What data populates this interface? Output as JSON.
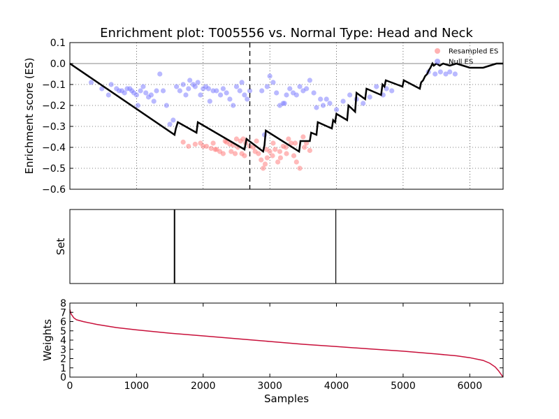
{
  "title": "Enrichment plot: T005556 vs. Normal Type: Head and Neck",
  "colors": {
    "resampled": "#ff7f7f",
    "null": "#7f7fff",
    "es_line": "#000000",
    "weights_line": "#c8103a"
  },
  "chart_data": [
    {
      "type": "line",
      "title": "Enrichment plot: T005556 vs. Normal Type: Head and Neck",
      "xlabel": "",
      "ylabel": "Enrichment score (ES)",
      "xlim": [
        0,
        6500
      ],
      "ylim": [
        -0.6,
        0.1
      ],
      "yticks": [
        0.1,
        0.0,
        -0.1,
        -0.2,
        -0.3,
        -0.4,
        -0.5,
        -0.6
      ],
      "ytick_labels": [
        "0.1",
        "0.0",
        "−0.1",
        "−0.2",
        "−0.3",
        "−0.4",
        "−0.5",
        "−0.6"
      ],
      "xgrid": [
        1000,
        2000,
        3000,
        4000,
        5000,
        6000
      ],
      "grid": true,
      "legend": {
        "placement": "top-right",
        "entries": [
          "Resampled ES",
          "Null ES"
        ]
      },
      "vline_x": 2700,
      "series": [
        {
          "name": "Resampled ES",
          "kind": "scatter",
          "points": [
            [
              1700,
              -0.375
            ],
            [
              1780,
              -0.395
            ],
            [
              1960,
              -0.38
            ],
            [
              2050,
              -0.395
            ],
            [
              2120,
              -0.405
            ],
            [
              2180,
              -0.41
            ],
            [
              2250,
              -0.42
            ],
            [
              2300,
              -0.43
            ],
            [
              2350,
              -0.375
            ],
            [
              2400,
              -0.385
            ],
            [
              2450,
              -0.39
            ],
            [
              2500,
              -0.36
            ],
            [
              2520,
              -0.4
            ],
            [
              2560,
              -0.37
            ],
            [
              2600,
              -0.36
            ],
            [
              2640,
              -0.38
            ],
            [
              2700,
              -0.395
            ],
            [
              2750,
              -0.4
            ],
            [
              2800,
              -0.37
            ],
            [
              2830,
              -0.43
            ],
            [
              2870,
              -0.46
            ],
            [
              2900,
              -0.5
            ],
            [
              2930,
              -0.48
            ],
            [
              2960,
              -0.45
            ],
            [
              3000,
              -0.42
            ],
            [
              3040,
              -0.44
            ],
            [
              3080,
              -0.41
            ],
            [
              3120,
              -0.47
            ],
            [
              3160,
              -0.45
            ],
            [
              3200,
              -0.395
            ],
            [
              3240,
              -0.4
            ],
            [
              3280,
              -0.36
            ],
            [
              3320,
              -0.38
            ],
            [
              3360,
              -0.44
            ],
            [
              3400,
              -0.47
            ],
            [
              3450,
              -0.5
            ],
            [
              3500,
              -0.35
            ],
            [
              3520,
              -0.4
            ],
            [
              3550,
              -0.38
            ],
            [
              3600,
              -0.415
            ],
            [
              2200,
              -0.41
            ],
            [
              2330,
              -0.37
            ],
            [
              2480,
              -0.43
            ],
            [
              2620,
              -0.44
            ],
            [
              2780,
              -0.42
            ],
            [
              2950,
              -0.41
            ],
            [
              3050,
              -0.38
            ],
            [
              3150,
              -0.42
            ],
            [
              3250,
              -0.43
            ],
            [
              3380,
              -0.38
            ],
            [
              2150,
              -0.38
            ],
            [
              2420,
              -0.42
            ],
            [
              1880,
              -0.385
            ],
            [
              2000,
              -0.395
            ],
            [
              2580,
              -0.43
            ]
          ]
        },
        {
          "name": "Null ES",
          "kind": "scatter",
          "points": [
            [
              320,
              -0.09
            ],
            [
              480,
              -0.12
            ],
            [
              580,
              -0.15
            ],
            [
              620,
              -0.1
            ],
            [
              700,
              -0.12
            ],
            [
              740,
              -0.13
            ],
            [
              780,
              -0.13
            ],
            [
              820,
              -0.14
            ],
            [
              860,
              -0.12
            ],
            [
              900,
              -0.12
            ],
            [
              930,
              -0.13
            ],
            [
              960,
              -0.14
            ],
            [
              1000,
              -0.15
            ],
            [
              1020,
              -0.2
            ],
            [
              1060,
              -0.13
            ],
            [
              1100,
              -0.11
            ],
            [
              1140,
              -0.14
            ],
            [
              1180,
              -0.16
            ],
            [
              1220,
              -0.15
            ],
            [
              1260,
              -0.18
            ],
            [
              1300,
              -0.13
            ],
            [
              1350,
              -0.05
            ],
            [
              1400,
              -0.13
            ],
            [
              1450,
              -0.2
            ],
            [
              1500,
              -0.29
            ],
            [
              1550,
              -0.27
            ],
            [
              1600,
              -0.11
            ],
            [
              1650,
              -0.13
            ],
            [
              1700,
              -0.1
            ],
            [
              1740,
              -0.15
            ],
            [
              1780,
              -0.12
            ],
            [
              1800,
              -0.08
            ],
            [
              1850,
              -0.1
            ],
            [
              1880,
              -0.11
            ],
            [
              1920,
              -0.09
            ],
            [
              1960,
              -0.15
            ],
            [
              2000,
              -0.12
            ],
            [
              2040,
              -0.11
            ],
            [
              2080,
              -0.12
            ],
            [
              2100,
              -0.18
            ],
            [
              2150,
              -0.13
            ],
            [
              2200,
              -0.13
            ],
            [
              2260,
              -0.15
            ],
            [
              2300,
              -0.12
            ],
            [
              2350,
              -0.14
            ],
            [
              2400,
              -0.17
            ],
            [
              2450,
              -0.2
            ],
            [
              2500,
              -0.11
            ],
            [
              2550,
              -0.13
            ],
            [
              2580,
              -0.09
            ],
            [
              2620,
              -0.15
            ],
            [
              2660,
              -0.17
            ],
            [
              2700,
              -0.13
            ],
            [
              2920,
              -0.34
            ],
            [
              2960,
              -0.11
            ],
            [
              3000,
              -0.06
            ],
            [
              3050,
              -0.09
            ],
            [
              3100,
              -0.14
            ],
            [
              3150,
              -0.2
            ],
            [
              3200,
              -0.19
            ],
            [
              3250,
              -0.15
            ],
            [
              3300,
              -0.12
            ],
            [
              3350,
              -0.14
            ],
            [
              3400,
              -0.15
            ],
            [
              3450,
              -0.11
            ],
            [
              3500,
              -0.13
            ],
            [
              3550,
              -0.12
            ],
            [
              3600,
              -0.08
            ],
            [
              3660,
              -0.14
            ],
            [
              3700,
              -0.21
            ],
            [
              3760,
              -0.17
            ],
            [
              3800,
              -0.2
            ],
            [
              3850,
              -0.17
            ],
            [
              3900,
              -0.19
            ],
            [
              4000,
              -0.22
            ],
            [
              4100,
              -0.18
            ],
            [
              4200,
              -0.15
            ],
            [
              4300,
              -0.17
            ],
            [
              4400,
              -0.19
            ],
            [
              4500,
              -0.16
            ],
            [
              4600,
              -0.11
            ],
            [
              4700,
              -0.15
            ],
            [
              4750,
              -0.12
            ],
            [
              5380,
              -0.04
            ],
            [
              5480,
              -0.05
            ],
            [
              5560,
              -0.04
            ],
            [
              5640,
              -0.05
            ],
            [
              5700,
              -0.04
            ],
            [
              5780,
              -0.05
            ],
            [
              4830,
              -0.13
            ],
            [
              3220,
              -0.19
            ],
            [
              2880,
              -0.13
            ]
          ]
        },
        {
          "name": "",
          "kind": "line",
          "points": [
            [
              0,
              0
            ],
            [
              1570,
              -0.34
            ],
            [
              1590,
              -0.31
            ],
            [
              1620,
              -0.28
            ],
            [
              1900,
              -0.33
            ],
            [
              1920,
              -0.28
            ],
            [
              2620,
              -0.41
            ],
            [
              2650,
              -0.36
            ],
            [
              2900,
              -0.42
            ],
            [
              2920,
              -0.39
            ],
            [
              2940,
              -0.32
            ],
            [
              3440,
              -0.42
            ],
            [
              3460,
              -0.37
            ],
            [
              3600,
              -0.37
            ],
            [
              3620,
              -0.33
            ],
            [
              3700,
              -0.34
            ],
            [
              3720,
              -0.28
            ],
            [
              3930,
              -0.31
            ],
            [
              3950,
              -0.27
            ],
            [
              3980,
              -0.28
            ],
            [
              4000,
              -0.24
            ],
            [
              4160,
              -0.27
            ],
            [
              4180,
              -0.2
            ],
            [
              4280,
              -0.23
            ],
            [
              4300,
              -0.14
            ],
            [
              4430,
              -0.17
            ],
            [
              4450,
              -0.12
            ],
            [
              4670,
              -0.15
            ],
            [
              4690,
              -0.1
            ],
            [
              4720,
              -0.11
            ],
            [
              4740,
              -0.08
            ],
            [
              4990,
              -0.11
            ],
            [
              5010,
              -0.08
            ],
            [
              5250,
              -0.12
            ],
            [
              5270,
              -0.09
            ],
            [
              5300,
              -0.08
            ],
            [
              5330,
              -0.06
            ],
            [
              5360,
              -0.05
            ],
            [
              5390,
              -0.03
            ],
            [
              5410,
              -0.02
            ],
            [
              5440,
              0.0
            ],
            [
              5460,
              -0.01
            ],
            [
              5500,
              0.0
            ],
            [
              5550,
              -0.01
            ],
            [
              5600,
              0.0
            ],
            [
              5700,
              -0.01
            ],
            [
              5800,
              0.0
            ],
            [
              5900,
              -0.01
            ],
            [
              6000,
              -0.02
            ],
            [
              6100,
              -0.02
            ],
            [
              6200,
              -0.02
            ],
            [
              6300,
              -0.01
            ],
            [
              6400,
              0.0
            ],
            [
              6500,
              0.0
            ]
          ]
        }
      ]
    },
    {
      "type": "line",
      "title": "",
      "xlabel": "",
      "ylabel": "Set",
      "xlim": [
        0,
        6500
      ],
      "hits": [
        1570,
        3990
      ]
    },
    {
      "type": "line",
      "title": "",
      "xlabel": "Samples",
      "ylabel": "Weights",
      "xlim": [
        0,
        6500
      ],
      "ylim": [
        0,
        8
      ],
      "yticks": [
        0,
        1,
        2,
        3,
        4,
        5,
        6,
        7,
        8
      ],
      "ytick_labels": [
        "0",
        "1",
        "2",
        "3",
        "4",
        "5",
        "6",
        "7",
        "8"
      ],
      "xticks": [
        0,
        1000,
        2000,
        3000,
        4000,
        5000,
        6000
      ],
      "xtick_labels": [
        "0",
        "1000",
        "2000",
        "3000",
        "4000",
        "5000",
        "6000"
      ],
      "series": [
        {
          "name": "",
          "x": [
            0,
            20,
            60,
            100,
            200,
            400,
            700,
            1000,
            1500,
            2000,
            2500,
            3000,
            3500,
            4000,
            4500,
            5000,
            5500,
            5800,
            6000,
            6200,
            6300,
            6380,
            6430,
            6470,
            6500
          ],
          "values": [
            7.3,
            6.8,
            6.4,
            6.2,
            6.0,
            5.7,
            5.35,
            5.1,
            4.75,
            4.45,
            4.15,
            3.85,
            3.55,
            3.3,
            3.05,
            2.8,
            2.5,
            2.3,
            2.1,
            1.8,
            1.5,
            1.1,
            0.7,
            0.3,
            0.0
          ]
        }
      ]
    }
  ]
}
